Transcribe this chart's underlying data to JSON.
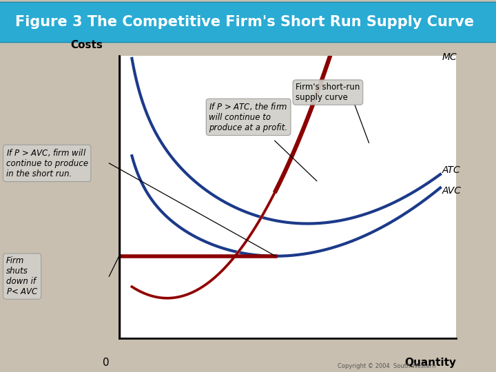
{
  "title": "Figure 3 The Competitive Firm's Short Run Supply Curve",
  "title_bg_color": "#29ABD4",
  "title_text_color": "#FFFFFF",
  "bg_color": "#C8BFB0",
  "plot_bg_color": "#FFFFFF",
  "ylabel": "Costs",
  "xlabel": "Quantity",
  "mc_color": "#8B0000",
  "atc_color": "#1C3A8A",
  "avc_color": "#1C3A8A",
  "supply_color": "#8B0000",
  "shutdown_color": "#8B0000",
  "pink_color": "#F4A0A0",
  "annotation_box_color": "#D0CFC8",
  "copyright": "Copyright © 2004  South-Western"
}
